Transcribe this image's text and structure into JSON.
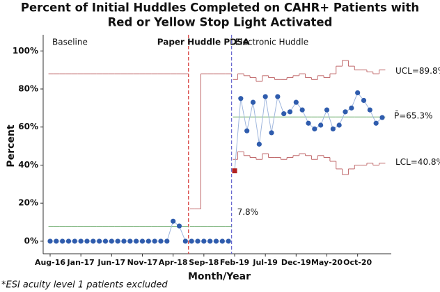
{
  "chart_data": {
    "type": "control",
    "title": [
      "Percent of Initial Huddles Completed on CAHR+ Patients with",
      "Red or Yellow Stop Light Activated"
    ],
    "x_label": "Month/Year",
    "y_label": "Percent",
    "footnote": "*ESI acuity level 1 patients excluded",
    "categories": [
      "Aug-16",
      null,
      null,
      null,
      null,
      "Jan-17",
      null,
      null,
      null,
      null,
      "Jun-17",
      null,
      null,
      null,
      null,
      "Nov-17",
      null,
      null,
      null,
      null,
      "Apr-18",
      null,
      null,
      null,
      null,
      "Sep-18",
      null,
      null,
      null,
      null,
      "Feb-19",
      null,
      null,
      null,
      null,
      "Jul-19",
      null,
      null,
      null,
      null,
      "Dec-19",
      null,
      null,
      null,
      null,
      "May-20",
      null,
      null,
      null,
      null,
      "Oct-20",
      null,
      null,
      null,
      null
    ],
    "phases": [
      {
        "label": "Baseline",
        "start": 0,
        "color": "#222222"
      },
      {
        "label": "Paper Huddle PDSA",
        "start": 23,
        "color": "#8b1a1a"
      },
      {
        "label": "Electronic Huddle",
        "start": 30,
        "color": "#222222"
      }
    ],
    "values": [
      0,
      0,
      0,
      0,
      0,
      0,
      0,
      0,
      0,
      0,
      0,
      0,
      0,
      0,
      0,
      0,
      0,
      0,
      0,
      0,
      10.5,
      8,
      0,
      0,
      0,
      0,
      0,
      0,
      0,
      0,
      37,
      75,
      58,
      73,
      51,
      76,
      57,
      76,
      67,
      68,
      73,
      69,
      62,
      59,
      61,
      69,
      59,
      61,
      68,
      70,
      78,
      74,
      69,
      62,
      65
    ],
    "ucl": [
      88,
      88,
      88,
      88,
      88,
      88,
      88,
      88,
      88,
      88,
      88,
      88,
      88,
      88,
      88,
      88,
      88,
      88,
      88,
      88,
      88,
      88,
      88,
      17,
      17,
      88,
      88,
      88,
      88,
      88,
      85,
      88,
      87,
      86,
      84,
      87,
      86,
      85,
      85,
      86,
      87,
      88,
      86,
      85,
      87,
      86,
      88,
      92,
      95,
      92,
      90,
      90,
      89,
      88,
      90
    ],
    "lcl": [
      null,
      null,
      null,
      null,
      null,
      null,
      null,
      null,
      null,
      null,
      null,
      null,
      null,
      null,
      null,
      null,
      null,
      null,
      null,
      null,
      null,
      null,
      null,
      null,
      null,
      null,
      null,
      null,
      null,
      null,
      43,
      47,
      45,
      44,
      43,
      46,
      44,
      44,
      43,
      44,
      45,
      46,
      45,
      43,
      45,
      44,
      42,
      38,
      35,
      38,
      40,
      40,
      41,
      40,
      41
    ],
    "center": [
      7.8,
      7.8,
      7.8,
      7.8,
      7.8,
      7.8,
      7.8,
      7.8,
      7.8,
      7.8,
      7.8,
      7.8,
      7.8,
      7.8,
      7.8,
      7.8,
      7.8,
      7.8,
      7.8,
      7.8,
      7.8,
      7.8,
      7.8,
      7.8,
      7.8,
      7.8,
      7.8,
      7.8,
      7.8,
      7.8,
      65.3,
      65.3,
      65.3,
      65.3,
      65.3,
      65.3,
      65.3,
      65.3,
      65.3,
      65.3,
      65.3,
      65.3,
      65.3,
      65.3,
      65.3,
      65.3,
      65.3,
      65.3,
      65.3,
      65.3,
      65.3,
      65.3,
      65.3,
      65.3,
      65.3
    ],
    "annotations": [
      "UCL=89.8%",
      "P̄=65.3%",
      "LCL=40.8%",
      "7.8%"
    ],
    "colors": {
      "point": "#2f5cad",
      "line": "#9fb6dd",
      "limit": "#c0686a",
      "center": "#6aaa6a",
      "out_of_control": "#b22222"
    },
    "ylim": [
      -6.6,
      108.5
    ],
    "yticks": [
      {
        "value": 0,
        "label": "0%"
      },
      {
        "value": 20,
        "label": "20%"
      },
      {
        "value": 40,
        "label": "40%"
      },
      {
        "value": 60,
        "label": "60%"
      },
      {
        "value": 80,
        "label": "80%"
      },
      {
        "value": 100,
        "label": "100%"
      }
    ]
  }
}
